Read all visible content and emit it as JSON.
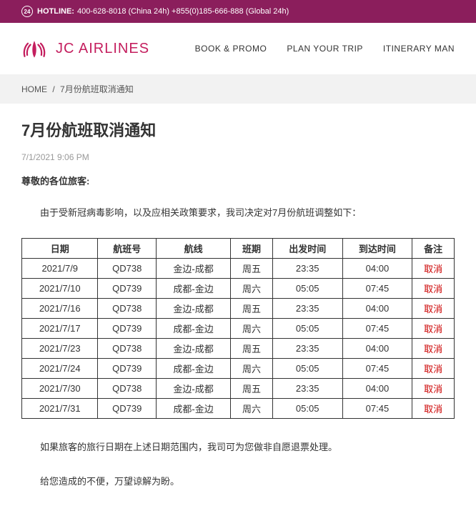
{
  "hotline": {
    "icon_text": "24",
    "label": "HOTLINE:",
    "text": "400-628-8018 (China 24h)   +855(0)185-666-888 (Global 24h)"
  },
  "brand": {
    "name": "JC  AIRLINES",
    "logo_color": "#c41e5e"
  },
  "nav": {
    "book": "BOOK & PROMO",
    "plan": "PLAN YOUR TRIP",
    "itinerary": "ITINERARY MAN"
  },
  "breadcrumb": {
    "home": "HOME",
    "sep": "/",
    "current": "7月份航班取消通知"
  },
  "page": {
    "title": "7月份航班取消通知",
    "date": "7/1/2021 9:06 PM",
    "salutation": "尊敬的各位旅客:",
    "intro": "由于受新冠病毒影响，以及应相关政策要求，我司决定对7月份航班调整如下：",
    "para2": "如果旅客的旅行日期在上述日期范围内，我司可为您做非自愿退票处理。",
    "para3": "给您造成的不便，万望谅解为盼。"
  },
  "table": {
    "headers": {
      "date": "日期",
      "flight": "航班号",
      "route": "航线",
      "schedule": "班期",
      "dep": "出发时间",
      "arr": "到达时间",
      "remark": "备注"
    },
    "rows": [
      {
        "date": "2021/7/9",
        "flight": "QD738",
        "route": "金边-成都",
        "schedule": "周五",
        "dep": "23:35",
        "arr": "04:00",
        "remark": "取消"
      },
      {
        "date": "2021/7/10",
        "flight": "QD739",
        "route": "成都-金边",
        "schedule": "周六",
        "dep": "05:05",
        "arr": "07:45",
        "remark": "取消"
      },
      {
        "date": "2021/7/16",
        "flight": "QD738",
        "route": "金边-成都",
        "schedule": "周五",
        "dep": "23:35",
        "arr": "04:00",
        "remark": "取消"
      },
      {
        "date": "2021/7/17",
        "flight": "QD739",
        "route": "成都-金边",
        "schedule": "周六",
        "dep": "05:05",
        "arr": "07:45",
        "remark": "取消"
      },
      {
        "date": "2021/7/23",
        "flight": "QD738",
        "route": "金边-成都",
        "schedule": "周五",
        "dep": "23:35",
        "arr": "04:00",
        "remark": "取消"
      },
      {
        "date": "2021/7/24",
        "flight": "QD739",
        "route": "成都-金边",
        "schedule": "周六",
        "dep": "05:05",
        "arr": "07:45",
        "remark": "取消"
      },
      {
        "date": "2021/7/30",
        "flight": "QD738",
        "route": "金边-成都",
        "schedule": "周五",
        "dep": "23:35",
        "arr": "04:00",
        "remark": "取消"
      },
      {
        "date": "2021/7/31",
        "flight": "QD739",
        "route": "成都-金边",
        "schedule": "周六",
        "dep": "05:05",
        "arr": "07:45",
        "remark": "取消"
      }
    ]
  }
}
